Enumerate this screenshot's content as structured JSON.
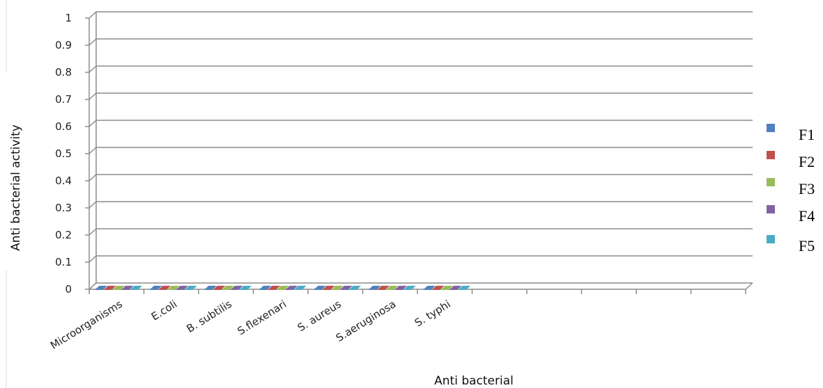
{
  "chart_data": {
    "type": "bar",
    "xlabel": "Anti bacterial",
    "ylabel": "Anti bacterial activity",
    "ylim": [
      0,
      1
    ],
    "yticks": [
      "0",
      "0.1",
      "0.2",
      "0.3",
      "0.4",
      "0.5",
      "0.6",
      "0.7",
      "0.8",
      "0.9",
      "1"
    ],
    "categories": [
      "Microorganisms",
      "E.coli",
      "B. subtilis",
      "S.flexenari",
      "S. aureus",
      "S.aeruginosa",
      "S. typhi",
      "",
      "",
      "",
      "",
      "",
      ""
    ],
    "series": [
      {
        "name": "F1",
        "color": "#4f81bd",
        "values": [
          0,
          0,
          0,
          0,
          0,
          0,
          0,
          null,
          null,
          null,
          null,
          null,
          null
        ]
      },
      {
        "name": "F2",
        "color": "#c0504d",
        "values": [
          0,
          0,
          0,
          0,
          0,
          0,
          0,
          null,
          null,
          null,
          null,
          null,
          null
        ]
      },
      {
        "name": "F3",
        "color": "#9bbb59",
        "values": [
          0,
          0,
          0,
          0,
          0,
          0,
          0,
          null,
          null,
          null,
          null,
          null,
          null
        ]
      },
      {
        "name": "F4",
        "color": "#8064a2",
        "values": [
          0,
          0,
          0,
          0,
          0,
          0,
          0,
          null,
          null,
          null,
          null,
          null,
          null
        ]
      },
      {
        "name": "F5",
        "color": "#4bacc6",
        "values": [
          0,
          0,
          0,
          0,
          0,
          0,
          0,
          null,
          null,
          null,
          null,
          null,
          null
        ]
      }
    ],
    "grid": true,
    "legend": "right",
    "style": "3d-clustered-column"
  }
}
